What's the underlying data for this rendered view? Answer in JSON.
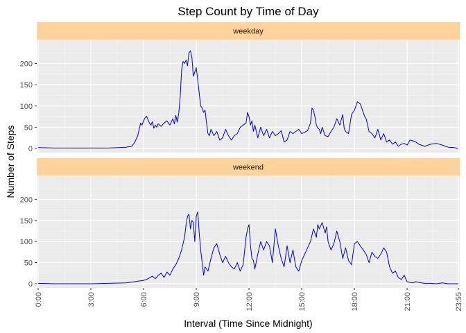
{
  "chart_data": {
    "type": "line",
    "title": "Step Count by Time of Day",
    "xlabel": "Interval (Time Since Midnight)",
    "ylabel": "Number of Steps",
    "xlim": [
      0,
      1435
    ],
    "ylim": [
      0,
      240
    ],
    "x_unit": "minutes since midnight",
    "x_ticks": [
      {
        "value": 0,
        "label": "0:00"
      },
      {
        "value": 180,
        "label": "3:00"
      },
      {
        "value": 360,
        "label": "6:00"
      },
      {
        "value": 540,
        "label": "9:00"
      },
      {
        "value": 720,
        "label": "12:00"
      },
      {
        "value": 900,
        "label": "15:00"
      },
      {
        "value": 1080,
        "label": "18:00"
      },
      {
        "value": 1260,
        "label": "21:00"
      },
      {
        "value": 1435,
        "label": "23:55"
      }
    ],
    "y_ticks": [
      0,
      50,
      100,
      150,
      200
    ],
    "grid": true,
    "line_color": "#0000cd",
    "panel_background": "#ebebeb",
    "strip_fill": "#ffd39b",
    "panels": [
      {
        "label": "weekday",
        "series": {
          "x": [
            0,
            60,
            120,
            240,
            300,
            320,
            330,
            340,
            345,
            350,
            355,
            360,
            365,
            370,
            375,
            380,
            385,
            390,
            395,
            400,
            405,
            410,
            420,
            430,
            440,
            450,
            460,
            465,
            470,
            475,
            480,
            485,
            490,
            495,
            500,
            505,
            510,
            515,
            520,
            525,
            530,
            535,
            540,
            545,
            550,
            555,
            560,
            565,
            570,
            575,
            580,
            585,
            590,
            600,
            610,
            620,
            630,
            640,
            650,
            660,
            670,
            680,
            690,
            700,
            710,
            715,
            720,
            725,
            730,
            735,
            740,
            750,
            760,
            770,
            780,
            790,
            800,
            810,
            820,
            830,
            840,
            850,
            860,
            870,
            880,
            890,
            900,
            910,
            920,
            930,
            935,
            940,
            945,
            950,
            955,
            960,
            965,
            970,
            980,
            990,
            1000,
            1010,
            1020,
            1030,
            1040,
            1045,
            1050,
            1060,
            1070,
            1080,
            1090,
            1100,
            1110,
            1115,
            1120,
            1130,
            1140,
            1150,
            1160,
            1170,
            1180,
            1190,
            1200,
            1210,
            1220,
            1230,
            1240,
            1250,
            1260,
            1270,
            1280,
            1290,
            1300,
            1320,
            1340,
            1360,
            1380,
            1400,
            1420,
            1435
          ],
          "y": [
            2,
            1,
            1,
            1,
            3,
            5,
            15,
            30,
            45,
            60,
            55,
            65,
            72,
            76,
            68,
            60,
            55,
            63,
            48,
            55,
            50,
            58,
            52,
            60,
            65,
            55,
            70,
            58,
            78,
            62,
            82,
            120,
            185,
            205,
            200,
            208,
            195,
            225,
            230,
            215,
            170,
            180,
            190,
            160,
            130,
            100,
            95,
            85,
            90,
            60,
            35,
            30,
            45,
            30,
            40,
            20,
            25,
            45,
            30,
            20,
            30,
            35,
            50,
            55,
            60,
            85,
            75,
            55,
            65,
            40,
            55,
            25,
            50,
            30,
            45,
            25,
            40,
            30,
            35,
            42,
            15,
            20,
            40,
            35,
            40,
            45,
            35,
            38,
            42,
            60,
            95,
            90,
            75,
            55,
            48,
            45,
            35,
            50,
            30,
            28,
            40,
            50,
            70,
            55,
            80,
            48,
            40,
            35,
            80,
            90,
            110,
            105,
            85,
            75,
            70,
            40,
            35,
            25,
            45,
            20,
            35,
            15,
            20,
            10,
            15,
            5,
            10,
            12,
            8,
            20,
            18,
            15,
            10,
            5,
            10,
            12,
            8,
            3,
            2,
            0
          ]
        }
      },
      {
        "label": "weekend",
        "series": {
          "x": [
            0,
            60,
            120,
            180,
            240,
            300,
            330,
            360,
            370,
            390,
            400,
            410,
            420,
            430,
            440,
            450,
            460,
            470,
            480,
            490,
            495,
            500,
            505,
            510,
            515,
            520,
            525,
            530,
            535,
            540,
            545,
            550,
            555,
            560,
            565,
            570,
            580,
            590,
            600,
            610,
            620,
            630,
            640,
            650,
            660,
            670,
            680,
            690,
            700,
            710,
            715,
            720,
            725,
            730,
            735,
            740,
            750,
            760,
            770,
            780,
            790,
            800,
            810,
            820,
            830,
            840,
            850,
            860,
            870,
            880,
            890,
            900,
            910,
            920,
            930,
            940,
            950,
            955,
            960,
            970,
            980,
            985,
            990,
            1000,
            1010,
            1020,
            1030,
            1040,
            1050,
            1060,
            1070,
            1080,
            1090,
            1100,
            1110,
            1120,
            1130,
            1140,
            1150,
            1160,
            1170,
            1180,
            1190,
            1200,
            1210,
            1220,
            1230,
            1240,
            1250,
            1260,
            1270,
            1280,
            1290,
            1300,
            1320,
            1340,
            1360,
            1380,
            1400,
            1420,
            1435
          ],
          "y": [
            1,
            0,
            0,
            0,
            1,
            2,
            5,
            8,
            10,
            18,
            12,
            20,
            25,
            15,
            28,
            20,
            35,
            45,
            60,
            80,
            95,
            110,
            140,
            160,
            165,
            130,
            150,
            145,
            100,
            160,
            170,
            120,
            80,
            50,
            20,
            40,
            30,
            60,
            85,
            95,
            70,
            50,
            65,
            50,
            40,
            35,
            50,
            30,
            45,
            110,
            130,
            140,
            90,
            60,
            55,
            35,
            70,
            100,
            80,
            100,
            90,
            50,
            130,
            90,
            60,
            40,
            90,
            50,
            80,
            40,
            30,
            55,
            70,
            85,
            100,
            130,
            110,
            140,
            130,
            145,
            120,
            135,
            100,
            80,
            95,
            125,
            100,
            60,
            85,
            55,
            45,
            95,
            100,
            90,
            80,
            70,
            50,
            75,
            65,
            60,
            70,
            85,
            75,
            40,
            25,
            30,
            15,
            10,
            20,
            5,
            3,
            2,
            5,
            3,
            1,
            1,
            0,
            2,
            0,
            0,
            0
          ]
        }
      }
    ]
  }
}
